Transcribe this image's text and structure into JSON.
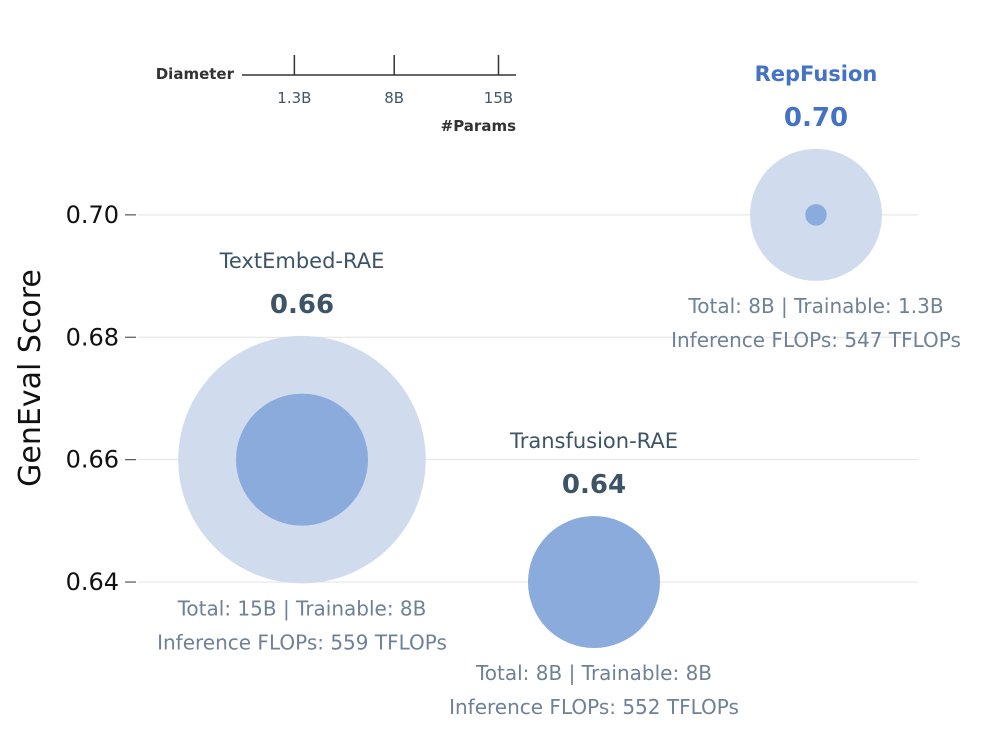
{
  "chart_data": {
    "type": "bubble",
    "ylabel": "GenEval Score",
    "ylim": [
      0.632,
      0.7155
    ],
    "yticks": [
      "0.64",
      "0.66",
      "0.68",
      "0.70"
    ],
    "grid": true,
    "size_legend": {
      "title": "Diameter",
      "axis_label": "#Params",
      "ticks": [
        {
          "label": "1.3B",
          "value": 1.3
        },
        {
          "label": "8B",
          "value": 8
        },
        {
          "label": "15B",
          "value": 15
        }
      ]
    },
    "colors": {
      "outer": "#d0dced",
      "inner": "#8aabdb",
      "grid": "#e3e3e3",
      "dark_label": "#3d5466",
      "highlight_label": "#4472c4",
      "info_text": "#6f8197"
    },
    "models": [
      {
        "name": "TextEmbed-RAE",
        "score": 0.66,
        "score_label": "0.66",
        "total_params": 15,
        "trainable_params": 8,
        "info_line1": "Total: 15B | Trainable: 8B",
        "info_line2": "Inference FLOPs: 559 TFLOPs",
        "highlight": false
      },
      {
        "name": "Transfusion-RAE",
        "score": 0.64,
        "score_label": "0.64",
        "total_params": 8,
        "trainable_params": 8,
        "info_line1": "Total: 8B | Trainable: 8B",
        "info_line2": "Inference FLOPs: 552 TFLOPs",
        "highlight": false
      },
      {
        "name": "RepFusion",
        "score": 0.7,
        "score_label": "0.70",
        "total_params": 8,
        "trainable_params": 1.3,
        "info_line1": "Total: 8B | Trainable: 1.3B",
        "info_line2": "Inference FLOPs: 547 TFLOPs",
        "highlight": true
      }
    ]
  }
}
